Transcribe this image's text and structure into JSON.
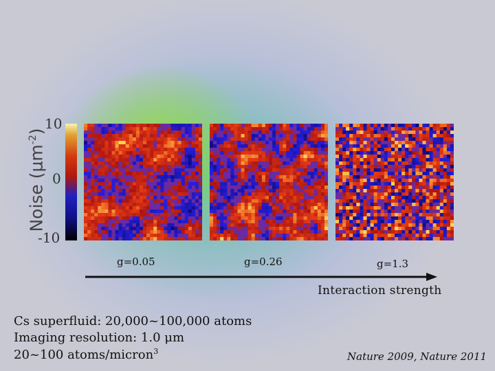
{
  "colorbar": {
    "title": "Noise (μm",
    "title_sup": "-2",
    "title_close": ")",
    "tick_top": "10",
    "tick_mid": "0",
    "tick_bottom": "-10"
  },
  "panels": [
    {
      "label": "g=0.05",
      "scale": 5
    },
    {
      "label": "g=0.26",
      "scale": 3
    },
    {
      "label": "g=1.3",
      "scale": 1
    }
  ],
  "arrow_label": "Interaction strength",
  "info_lines": [
    "Cs superfluid: 20,000~100,000 atoms",
    "Imaging resolution: 1.0 μm",
    "20~100 atoms/micron"
  ],
  "info_line3_sup": "3",
  "citation": "Nature 2009, Nature 2011",
  "colors": {
    "low": "#1a1ad0",
    "mid": "#c02020",
    "high": "#ffb020"
  }
}
